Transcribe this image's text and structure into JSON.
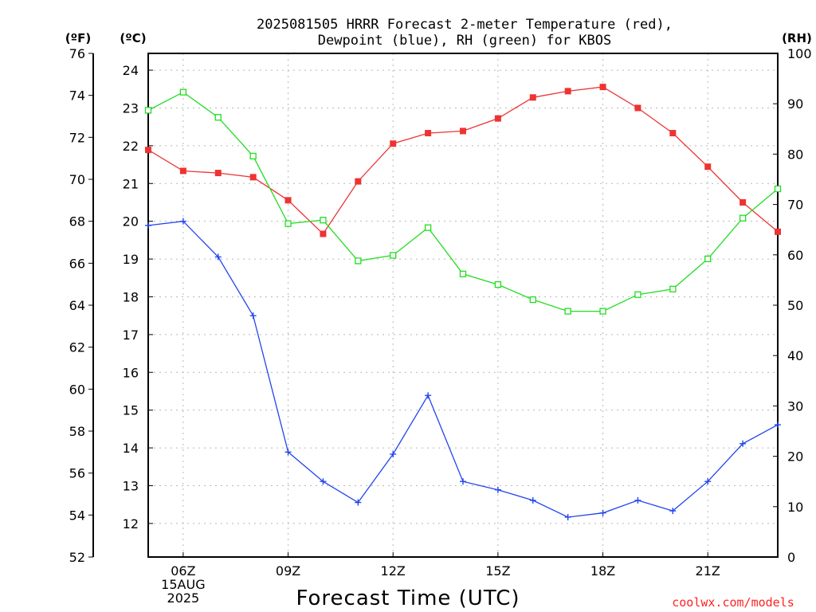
{
  "chart_data": {
    "type": "line",
    "title": {
      "line1": "2025081505 HRRR Forecast 2-meter Temperature (red),",
      "line2": "Dewpoint (blue), RH (green) for KBOS"
    },
    "xlabel": "Forecast Time (UTC)",
    "credit": "coolwx.com/models",
    "unit_labels": {
      "fahrenheit": "(ºF)",
      "celsius": "(ºC)",
      "rh": "(RH)"
    },
    "x_hours": [
      5,
      6,
      7,
      8,
      9,
      10,
      11,
      12,
      13,
      14,
      15,
      16,
      17,
      18,
      19,
      20,
      21,
      22,
      23
    ],
    "xlim": [
      5,
      23
    ],
    "x_ticks": [
      {
        "hour": 6,
        "lines": [
          "06Z",
          "15AUG",
          "2025"
        ]
      },
      {
        "hour": 9,
        "lines": [
          "09Z"
        ]
      },
      {
        "hour": 12,
        "lines": [
          "12Z"
        ]
      },
      {
        "hour": 15,
        "lines": [
          "15Z"
        ]
      },
      {
        "hour": 18,
        "lines": [
          "18Z"
        ]
      },
      {
        "hour": 21,
        "lines": [
          "21Z"
        ]
      }
    ],
    "y_fahrenheit": {
      "range": [
        52,
        76
      ],
      "ticks": [
        52,
        54,
        56,
        58,
        60,
        62,
        64,
        66,
        68,
        70,
        72,
        74,
        76
      ]
    },
    "y_celsius": {
      "ticks": [
        12,
        13,
        14,
        15,
        16,
        17,
        18,
        19,
        20,
        21,
        22,
        23,
        24
      ]
    },
    "y_rh": {
      "range": [
        0,
        100
      ],
      "ticks": [
        0,
        10,
        20,
        30,
        40,
        50,
        60,
        70,
        80,
        90,
        100
      ]
    },
    "grid": true,
    "series": [
      {
        "key": "temperature",
        "axis": "fahrenheit",
        "marker": "filled-square",
        "color": "#ee3333",
        "values": [
          71.4,
          70.4,
          70.3,
          70.1,
          69.0,
          67.4,
          69.9,
          71.7,
          72.2,
          72.3,
          72.9,
          73.9,
          74.2,
          74.4,
          73.4,
          72.2,
          70.6,
          68.9,
          67.5
        ]
      },
      {
        "key": "dewpoint",
        "axis": "fahrenheit",
        "marker": "plus",
        "color": "#2244ee",
        "values": [
          67.8,
          68.0,
          66.3,
          63.5,
          57.0,
          55.6,
          54.6,
          56.9,
          59.7,
          55.6,
          55.2,
          54.7,
          53.9,
          54.1,
          54.7,
          54.2,
          55.6,
          57.4,
          58.3
        ]
      },
      {
        "key": "rh",
        "axis": "rh",
        "marker": "open-square",
        "color": "#22dd22",
        "values": [
          88.7,
          92.3,
          87.3,
          79.6,
          66.2,
          66.9,
          58.8,
          59.9,
          65.4,
          56.2,
          54.1,
          51.1,
          48.8,
          48.8,
          52.1,
          53.2,
          59.2,
          67.3,
          73.1
        ]
      }
    ]
  }
}
